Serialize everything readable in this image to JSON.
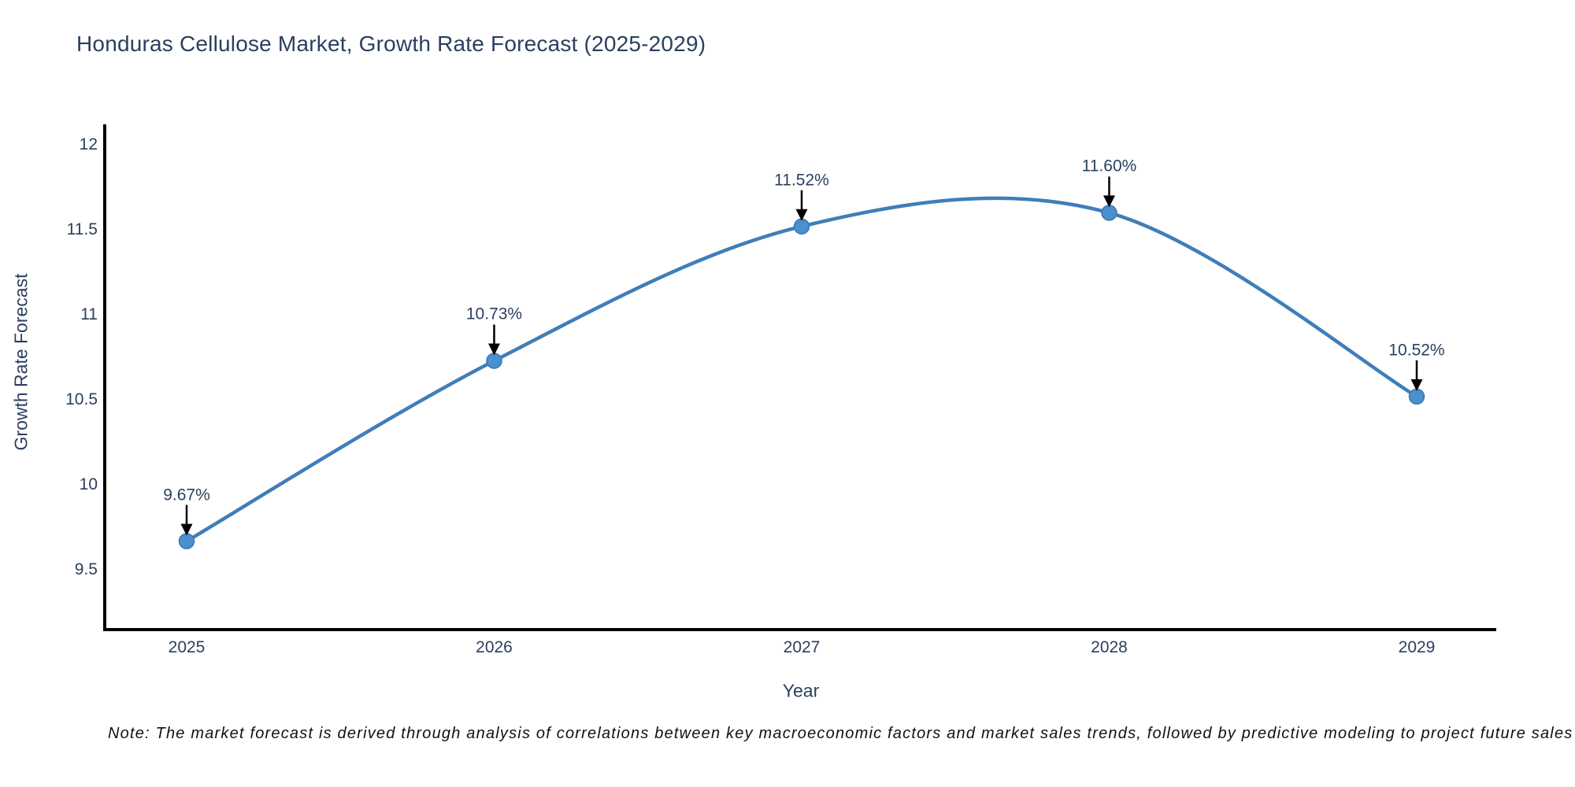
{
  "title": "Honduras Cellulose Market, Growth Rate Forecast (2025-2029)",
  "note": "Note: The market forecast is derived through analysis of correlations between key macroeconomic factors and market sales trends, followed by predictive modeling to project future sales",
  "chart_data": {
    "type": "line",
    "line_shape": "spline",
    "title": "Honduras Cellulose Market, Growth Rate Forecast (2025-2029)",
    "xlabel": "Year",
    "ylabel": "Growth Rate Forecast",
    "categories": [
      "2025",
      "2026",
      "2027",
      "2028",
      "2029"
    ],
    "values": [
      9.67,
      10.73,
      11.52,
      11.6,
      10.52
    ],
    "point_labels": [
      "9.67%",
      "10.73%",
      "11.52%",
      "11.60%",
      "10.52%"
    ],
    "y_ticks": [
      9.5,
      10,
      10.5,
      11,
      11.5,
      12
    ],
    "y_tick_labels": [
      "9.5",
      "10",
      "10.5",
      "11",
      "11.5",
      "12"
    ],
    "ylim": [
      9.15,
      12.12
    ],
    "grid": false,
    "legend": false,
    "annotation_arrows": true,
    "line_color": "#3f7eb8",
    "marker_color": "#4a8fce",
    "marker_edge_color": "#3a78b2",
    "axis_color": "#000000",
    "text_color": "#2a3f5f",
    "arrow_color": "#000000"
  }
}
